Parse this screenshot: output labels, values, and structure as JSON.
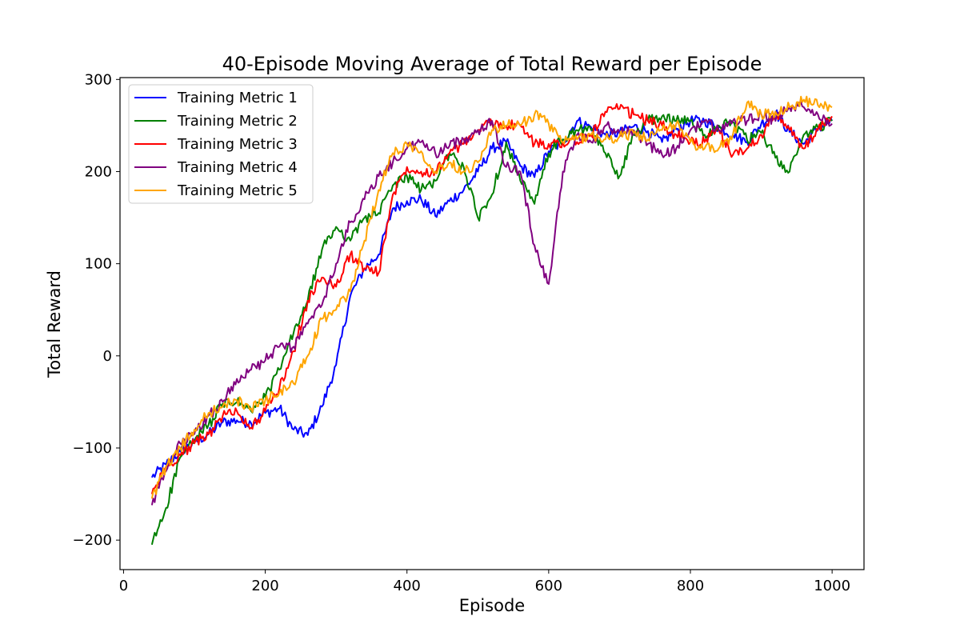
{
  "chart_data": {
    "type": "line",
    "title": "40-Episode Moving Average of Total Reward per Episode",
    "xlabel": "Episode",
    "ylabel": "Total Reward",
    "xlim": [
      -5,
      1045
    ],
    "ylim": [
      -232,
      302
    ],
    "xticks": [
      0,
      200,
      400,
      600,
      800,
      1000
    ],
    "yticks": [
      -200,
      -100,
      0,
      100,
      200,
      300
    ],
    "xtick_labels": [
      "0",
      "200",
      "400",
      "600",
      "800",
      "1000"
    ],
    "ytick_labels": [
      "−200",
      "−100",
      "0",
      "100",
      "200",
      "300"
    ],
    "grid": false,
    "legend_position": "top-left",
    "x": [
      40,
      60,
      80,
      100,
      120,
      140,
      160,
      180,
      200,
      220,
      240,
      260,
      280,
      300,
      320,
      340,
      360,
      380,
      400,
      420,
      440,
      460,
      480,
      500,
      520,
      540,
      560,
      580,
      600,
      620,
      640,
      660,
      680,
      700,
      720,
      740,
      760,
      780,
      800,
      820,
      840,
      860,
      880,
      900,
      920,
      940,
      960,
      980,
      1000
    ],
    "series": [
      {
        "name": "Training Metric 1",
        "color": "#0000ff",
        "values": [
          -132,
          -118,
          -104,
          -94,
          -85,
          -72,
          -70,
          -73,
          -62,
          -57,
          -80,
          -86,
          -55,
          -10,
          65,
          95,
          110,
          160,
          168,
          170,
          152,
          168,
          180,
          200,
          225,
          232,
          206,
          194,
          222,
          232,
          255,
          248,
          240,
          242,
          249,
          244,
          232,
          246,
          255,
          255,
          248,
          240,
          232,
          252,
          264,
          243,
          230,
          247,
          255
        ]
      },
      {
        "name": "Training Metric 2",
        "color": "#008000",
        "values": [
          -205,
          -165,
          -110,
          -92,
          -75,
          -52,
          -50,
          -60,
          -45,
          -15,
          25,
          60,
          115,
          140,
          125,
          150,
          155,
          185,
          195,
          180,
          190,
          220,
          205,
          150,
          175,
          232,
          190,
          165,
          220,
          235,
          245,
          245,
          220,
          195,
          240,
          255,
          260,
          255,
          255,
          240,
          250,
          254,
          234,
          242,
          215,
          200,
          240,
          248,
          255
        ]
      },
      {
        "name": "Training Metric 3",
        "color": "#ff0000",
        "values": [
          -150,
          -120,
          -108,
          -95,
          -85,
          -65,
          -60,
          -78,
          -60,
          -35,
          5,
          60,
          85,
          75,
          110,
          95,
          90,
          175,
          205,
          200,
          200,
          220,
          230,
          245,
          253,
          250,
          250,
          230,
          230,
          232,
          232,
          240,
          265,
          268,
          262,
          255,
          250,
          240,
          232,
          232,
          245,
          218,
          225,
          240,
          265,
          245,
          225,
          245,
          260
        ]
      },
      {
        "name": "Training Metric 4",
        "color": "#800080",
        "values": [
          -162,
          -125,
          -95,
          -85,
          -65,
          -50,
          -25,
          -15,
          -5,
          10,
          10,
          35,
          55,
          100,
          145,
          170,
          195,
          210,
          225,
          232,
          220,
          228,
          235,
          245,
          255,
          205,
          200,
          120,
          78,
          200,
          240,
          232,
          250,
          242,
          245,
          230,
          218,
          225,
          245,
          255,
          245,
          255,
          255,
          262,
          255,
          270,
          270,
          262,
          252
        ]
      },
      {
        "name": "Training Metric 5",
        "color": "#ffa500",
        "values": [
          -155,
          -120,
          -100,
          -80,
          -62,
          -55,
          -48,
          -57,
          -48,
          -40,
          -30,
          0,
          40,
          50,
          70,
          125,
          180,
          220,
          230,
          222,
          200,
          210,
          200,
          210,
          245,
          250,
          250,
          262,
          252,
          232,
          235,
          240,
          235,
          238,
          242,
          235,
          245,
          252,
          232,
          225,
          225,
          240,
          275,
          262,
          265,
          270,
          278,
          272,
          270
        ]
      }
    ]
  }
}
